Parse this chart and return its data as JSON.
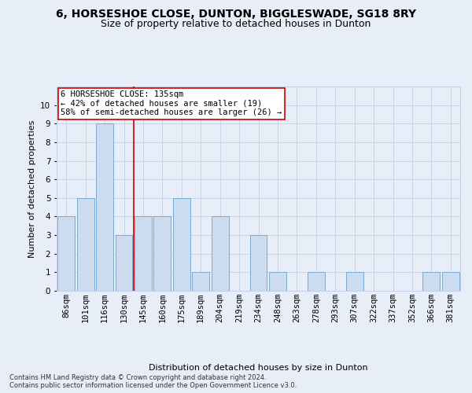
{
  "title": "6, HORSESHOE CLOSE, DUNTON, BIGGLESWADE, SG18 8RY",
  "subtitle": "Size of property relative to detached houses in Dunton",
  "xlabel": "Distribution of detached houses by size in Dunton",
  "ylabel": "Number of detached properties",
  "categories": [
    "86sqm",
    "101sqm",
    "116sqm",
    "130sqm",
    "145sqm",
    "160sqm",
    "175sqm",
    "189sqm",
    "204sqm",
    "219sqm",
    "234sqm",
    "248sqm",
    "263sqm",
    "278sqm",
    "293sqm",
    "307sqm",
    "322sqm",
    "337sqm",
    "352sqm",
    "366sqm",
    "381sqm"
  ],
  "values": [
    4,
    5,
    9,
    3,
    4,
    4,
    5,
    1,
    4,
    0,
    3,
    1,
    0,
    1,
    0,
    1,
    0,
    0,
    0,
    1,
    1
  ],
  "bar_color": "#ccdcf0",
  "bar_edge_color": "#7aaad0",
  "vline_x": 3.5,
  "vline_color": "#cc0000",
  "annotation_text": "6 HORSESHOE CLOSE: 135sqm\n← 42% of detached houses are smaller (19)\n58% of semi-detached houses are larger (26) →",
  "annotation_box_color": "#ffffff",
  "annotation_box_edge": "#cc0000",
  "ylim": [
    0,
    11
  ],
  "yticks": [
    0,
    1,
    2,
    3,
    4,
    5,
    6,
    7,
    8,
    9,
    10
  ],
  "footer": "Contains HM Land Registry data © Crown copyright and database right 2024.\nContains public sector information licensed under the Open Government Licence v3.0.",
  "bg_color": "#e8eef8",
  "grid_color": "#c8d0e8",
  "title_fontsize": 10,
  "subtitle_fontsize": 9,
  "label_fontsize": 8,
  "tick_fontsize": 7.5,
  "footer_fontsize": 6
}
